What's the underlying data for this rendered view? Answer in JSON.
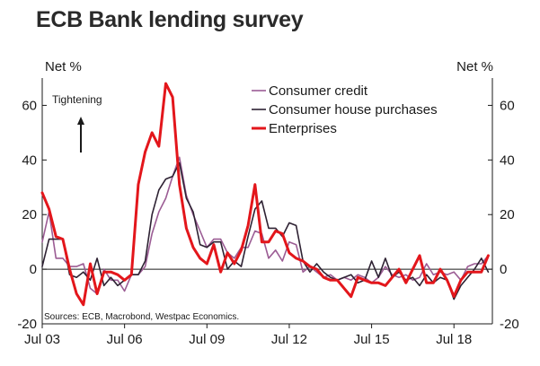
{
  "chart_data": {
    "type": "line",
    "title": "ECB Bank lending survey",
    "ylabel_left": "Net %",
    "ylabel_right": "Net %",
    "ylim": [
      -20,
      70
    ],
    "yticks": [
      -20,
      0,
      20,
      40,
      60
    ],
    "xlim": [
      2003.5,
      2019.9
    ],
    "xticks": [
      {
        "label": "Jul 03",
        "value": 2003.5
      },
      {
        "label": "Jul 06",
        "value": 2006.5
      },
      {
        "label": "Jul 09",
        "value": 2009.5
      },
      {
        "label": "Jul 12",
        "value": 2012.5
      },
      {
        "label": "Jul 15",
        "value": 2015.5
      },
      {
        "label": "Jul 18",
        "value": 2018.5
      }
    ],
    "annotation": "Tightening",
    "source": "Sources: ECB, Macrobond, Westpac Economics.",
    "series": [
      {
        "name": "Consumer credit",
        "color": "#9b5c94",
        "x": [
          2003.5,
          2003.75,
          2004.0,
          2004.25,
          2004.5,
          2004.75,
          2005.0,
          2005.25,
          2005.5,
          2005.75,
          2006.0,
          2006.25,
          2006.5,
          2006.75,
          2007.0,
          2007.25,
          2007.5,
          2007.75,
          2008.0,
          2008.25,
          2008.5,
          2008.75,
          2009.0,
          2009.25,
          2009.5,
          2009.75,
          2010.0,
          2010.25,
          2010.5,
          2010.75,
          2011.0,
          2011.25,
          2011.5,
          2011.75,
          2012.0,
          2012.25,
          2012.5,
          2012.75,
          2013.0,
          2013.25,
          2013.5,
          2013.75,
          2014.0,
          2014.25,
          2014.5,
          2014.75,
          2015.0,
          2015.25,
          2015.5,
          2015.75,
          2016.0,
          2016.25,
          2016.5,
          2016.75,
          2017.0,
          2017.25,
          2017.5,
          2017.75,
          2018.0,
          2018.25,
          2018.5,
          2018.75,
          2019.0,
          2019.25,
          2019.5,
          2019.75
        ],
        "y": [
          10,
          21,
          4,
          4,
          1,
          1,
          2,
          -7,
          -9,
          0,
          -4,
          -4,
          -8,
          -2,
          -2,
          1,
          13,
          21,
          26,
          34,
          41,
          27,
          20,
          14,
          8,
          11,
          11,
          6,
          4,
          8,
          8,
          14,
          13,
          4,
          7,
          3,
          10,
          9,
          -1,
          1,
          -1,
          -3,
          -2,
          -4,
          -3,
          -4,
          -2,
          -3,
          -5,
          -3,
          1,
          -2,
          -3,
          -2,
          -4,
          -3,
          2,
          -2,
          -1,
          -2,
          -1,
          -4,
          1,
          2,
          2,
          5
        ]
      },
      {
        "name": "Consumer house purchases",
        "color": "#2e2233",
        "x": [
          2003.5,
          2003.75,
          2004.0,
          2004.25,
          2004.5,
          2004.75,
          2005.0,
          2005.25,
          2005.5,
          2005.75,
          2006.0,
          2006.25,
          2006.5,
          2006.75,
          2007.0,
          2007.25,
          2007.5,
          2007.75,
          2008.0,
          2008.25,
          2008.5,
          2008.75,
          2009.0,
          2009.25,
          2009.5,
          2009.75,
          2010.0,
          2010.25,
          2010.5,
          2010.75,
          2011.0,
          2011.25,
          2011.5,
          2011.75,
          2012.0,
          2012.25,
          2012.5,
          2012.75,
          2013.0,
          2013.25,
          2013.5,
          2013.75,
          2014.0,
          2014.25,
          2014.5,
          2014.75,
          2015.0,
          2015.25,
          2015.5,
          2015.75,
          2016.0,
          2016.25,
          2016.5,
          2016.75,
          2017.0,
          2017.25,
          2017.5,
          2017.75,
          2018.0,
          2018.25,
          2018.5,
          2018.75,
          2019.0,
          2019.25,
          2019.5,
          2019.75
        ],
        "y": [
          1,
          11,
          11,
          11,
          -2,
          -3,
          -1,
          -4,
          4,
          -6,
          -3,
          -6,
          -4,
          -2,
          -2,
          3,
          20,
          29,
          33,
          34,
          39,
          26,
          21,
          9,
          8,
          10,
          10,
          0,
          3,
          1,
          12,
          22,
          25,
          15,
          15,
          12,
          17,
          16,
          3,
          -1,
          2,
          -1,
          -3,
          -4,
          -3,
          -2,
          -5,
          -4,
          3,
          -3,
          4,
          -3,
          -1,
          -4,
          -3,
          -6,
          -2,
          -5,
          -3,
          -4,
          -11,
          -6,
          -3,
          0,
          4,
          -1
        ]
      },
      {
        "name": "Enterprises",
        "color": "#e3161b",
        "x": [
          2003.5,
          2003.75,
          2004.0,
          2004.25,
          2004.5,
          2004.75,
          2005.0,
          2005.25,
          2005.5,
          2005.75,
          2006.0,
          2006.25,
          2006.5,
          2006.75,
          2007.0,
          2007.25,
          2007.5,
          2007.75,
          2008.0,
          2008.25,
          2008.5,
          2008.75,
          2009.0,
          2009.25,
          2009.5,
          2009.75,
          2010.0,
          2010.25,
          2010.5,
          2010.75,
          2011.0,
          2011.25,
          2011.5,
          2011.75,
          2012.0,
          2012.25,
          2012.5,
          2012.75,
          2013.0,
          2013.25,
          2013.5,
          2013.75,
          2014.0,
          2014.25,
          2014.5,
          2014.75,
          2015.0,
          2015.25,
          2015.5,
          2015.75,
          2016.0,
          2016.25,
          2016.5,
          2016.75,
          2017.0,
          2017.25,
          2017.5,
          2017.75,
          2018.0,
          2018.25,
          2018.5,
          2018.75,
          2019.0,
          2019.25,
          2019.5,
          2019.75
        ],
        "y": [
          28,
          22,
          12,
          11,
          0,
          -9,
          -13,
          2,
          -9,
          -1,
          -1,
          -2,
          -4,
          -2,
          31,
          43,
          50,
          45,
          68,
          63,
          31,
          15,
          8,
          4,
          2,
          9,
          -1,
          6,
          2,
          7,
          16,
          31,
          10,
          10,
          14,
          13,
          6,
          4,
          3,
          1,
          0,
          -3,
          -4,
          -4,
          -7,
          -10,
          -3,
          -4,
          -5,
          -5,
          -6,
          -3,
          0,
          -5,
          0,
          5,
          -5,
          -5,
          0,
          -4,
          -10,
          -4,
          -1,
          -1,
          -1,
          5
        ]
      }
    ]
  }
}
